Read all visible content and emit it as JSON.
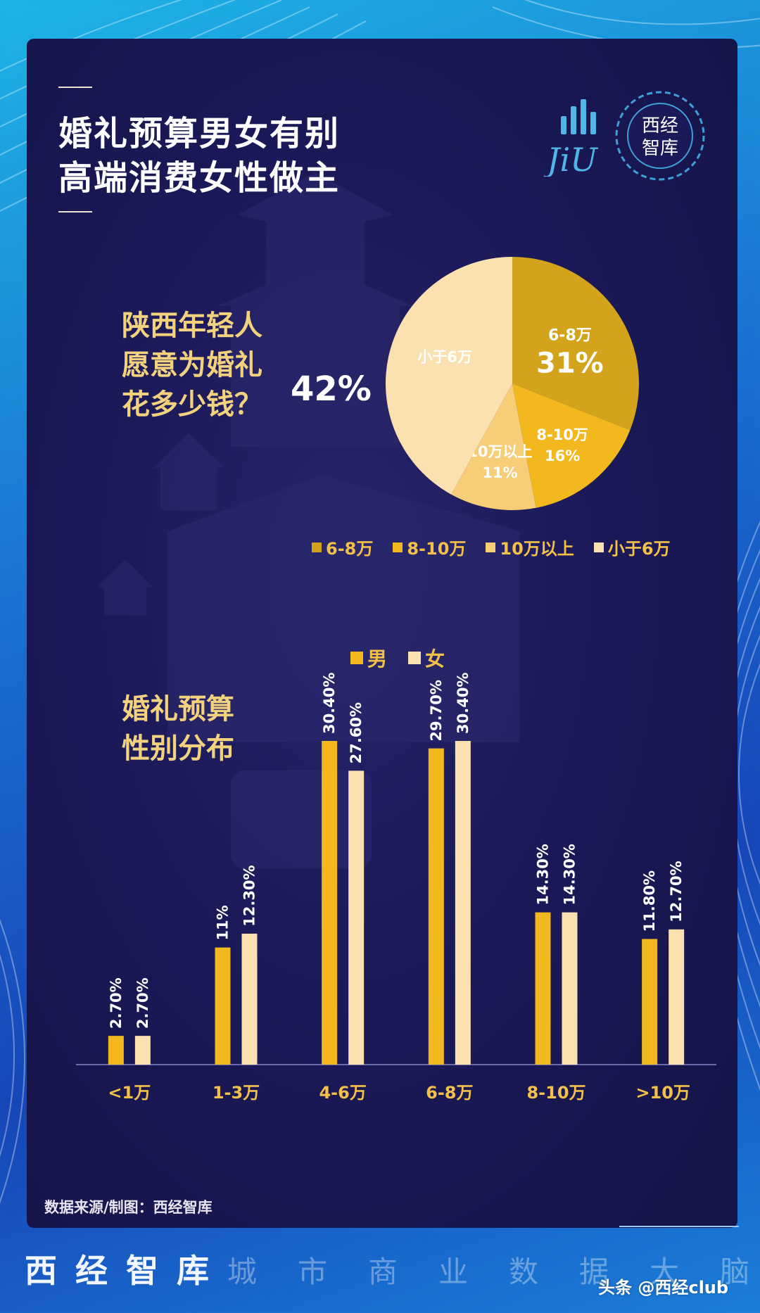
{
  "title": {
    "line1": "婚礼预算男女有别",
    "line2": "高端消费女性做主"
  },
  "logos": {
    "seal_line1": "西经",
    "seal_line2": "智库"
  },
  "pie_section": {
    "question_lines": [
      "陕西年轻人",
      "愿意为婚礼",
      "花多少钱？"
    ]
  },
  "bar_section": {
    "question_lines": [
      "婚礼预算",
      "性别分布"
    ]
  },
  "colors": {
    "accent": "#f3c04a",
    "dark_gold": "#d3a31c",
    "gold": "#f2b81e",
    "light_gold": "#f7cd78",
    "cream": "#fbe1b0"
  },
  "chart_data": [
    {
      "type": "pie",
      "slices": [
        {
          "label": "6-8万",
          "value": 31,
          "display": "31%",
          "color": "#d3a31c"
        },
        {
          "label": "8-10万",
          "value": 16,
          "display": "16%",
          "color": "#f2b81e"
        },
        {
          "label": "10万以上",
          "value": 11,
          "display": "11%",
          "color": "#f7cd78"
        },
        {
          "label": "小于6万",
          "value": 42,
          "display": "42%",
          "color": "#fbe1b0"
        }
      ],
      "legend": [
        "6-8万",
        "8-10万",
        "10万以上",
        "小于6万"
      ],
      "legend_position": "bottom"
    },
    {
      "type": "bar",
      "categories": [
        "<1万",
        "1-3万",
        "4-6万",
        "6-8万",
        "8-10万",
        ">10万"
      ],
      "series": [
        {
          "name": "男",
          "color": "#f2b81e",
          "values": [
            2.7,
            11,
            30.4,
            29.7,
            14.3,
            11.8
          ],
          "labels": [
            "2.70%",
            "11%",
            "30.40%",
            "29.70%",
            "14.30%",
            "11.80%"
          ]
        },
        {
          "name": "女",
          "color": "#fbe1b0",
          "values": [
            2.7,
            12.3,
            27.6,
            30.4,
            14.3,
            12.7
          ],
          "labels": [
            "2.70%",
            "12.30%",
            "27.60%",
            "30.40%",
            "14.30%",
            "12.70%"
          ]
        }
      ],
      "legend_position": "top"
    }
  ],
  "footer": {
    "source": "数据来源/制图：西经智库",
    "brand_main": "西经智库",
    "brand_sub": "城市商业数据大脑",
    "watermark": "头条 @西经club"
  }
}
